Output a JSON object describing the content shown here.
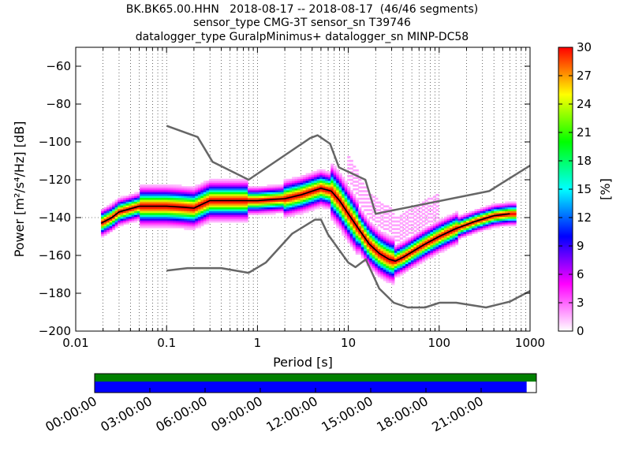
{
  "title_lines": [
    "BK.BK65.00.HHN   2018-08-17 -- 2018-08-17  (46/46 segments)",
    "sensor_type CMG-3T sensor_sn T39746",
    "datalogger_type GuralpMinimus+ datalogger_sn MINP-DC58"
  ],
  "chart_data": [
    {
      "type": "heatmap",
      "title": "BK.BK65.00.HHN   2018-08-17 -- 2018-08-17  (46/46 segments)",
      "xlabel": "Period [s]",
      "ylabel": "Power [m²/s⁴/Hz] [dB]",
      "xscale": "log",
      "xlim": [
        0.01,
        1000
      ],
      "ylim": [
        -200,
        -50
      ],
      "x_ticks": [
        0.01,
        0.1,
        1,
        10,
        100,
        1000
      ],
      "x_tick_labels": [
        "0.01",
        "0.1",
        "1",
        "10",
        "100",
        "1000"
      ],
      "y_ticks": [
        -200,
        -180,
        -160,
        -140,
        -120,
        -100,
        -80,
        -60
      ],
      "y_tick_labels": [
        "−200",
        "−180",
        "−160",
        "−140",
        "−120",
        "−100",
        "−80",
        "−60"
      ],
      "grid": "dotted vertical at log-minor ticks, dotted horizontal at -140",
      "colorbar": {
        "label": "[%]",
        "range": [
          0,
          30
        ],
        "ticks": [
          0,
          3,
          6,
          9,
          12,
          15,
          18,
          21,
          24,
          27,
          30
        ],
        "colormap": [
          "#ffffff",
          "#ff00ff",
          "#0000ff",
          "#00ffff",
          "#00ff00",
          "#ffff00",
          "#ff0000"
        ]
      },
      "series": [
        {
          "role": "NHNM",
          "color": "#666666",
          "x": [
            0.1,
            0.22,
            0.32,
            0.8,
            3.8,
            4.6,
            6.3,
            7.9,
            15.4,
            20.0,
            354.8,
            1000
          ],
          "y": [
            -91.5,
            -97.4,
            -110.5,
            -120.0,
            -98.0,
            -96.5,
            -101.0,
            -113.5,
            -120.0,
            -138.0,
            -126.0,
            -112.5
          ]
        },
        {
          "role": "NLNM",
          "color": "#666666",
          "x": [
            0.1,
            0.17,
            0.4,
            0.8,
            1.24,
            2.4,
            4.3,
            5.0,
            6.0,
            10.0,
            12.0,
            15.6,
            21.9,
            31.6,
            45.0,
            70.0,
            101.0,
            154.0,
            328.0,
            600.0,
            1000.0
          ],
          "y": [
            -168.0,
            -166.7,
            -166.7,
            -169.2,
            -163.7,
            -148.6,
            -141.1,
            -141.1,
            -149.0,
            -163.8,
            -166.2,
            -162.1,
            -177.5,
            -185.0,
            -187.5,
            -187.5,
            -185.0,
            -185.0,
            -187.5,
            -184.4,
            -178.8
          ]
        },
        {
          "role": "median_psd",
          "color": "#000000",
          "x": [
            0.019,
            0.025,
            0.03,
            0.05,
            0.1,
            0.15,
            0.2,
            0.3,
            0.5,
            1.0,
            2.0,
            3.0,
            5.0,
            6.5,
            8.0,
            10.0,
            13.0,
            17.0,
            22.0,
            28.0,
            33.0,
            40.0,
            55.0,
            70.0,
            100.0,
            150.0,
            250.0,
            400.0,
            600.0
          ],
          "y": [
            -143.0,
            -140.0,
            -137.0,
            -134.0,
            -134.0,
            -134.5,
            -135.0,
            -131.0,
            -131.0,
            -131.0,
            -130.0,
            -128.0,
            -124.5,
            -126.0,
            -131.0,
            -138.0,
            -146.0,
            -154.0,
            -159.0,
            -162.0,
            -163.0,
            -161.0,
            -157.0,
            -154.0,
            -150.0,
            -146.0,
            -142.0,
            -139.0,
            -138.0
          ]
        }
      ]
    },
    {
      "type": "bar",
      "role": "data availability",
      "x_tick_labels": [
        "00:00:00",
        "03:00:00",
        "06:00:00",
        "09:00:00",
        "12:00:00",
        "15:00:00",
        "18:00:00",
        "21:00:00"
      ],
      "rows": [
        {
          "color": "#008000",
          "coverage": [
            0.0,
            1.0
          ]
        },
        {
          "color": "#0000ff",
          "coverage": [
            0.0,
            0.978
          ]
        }
      ]
    }
  ]
}
